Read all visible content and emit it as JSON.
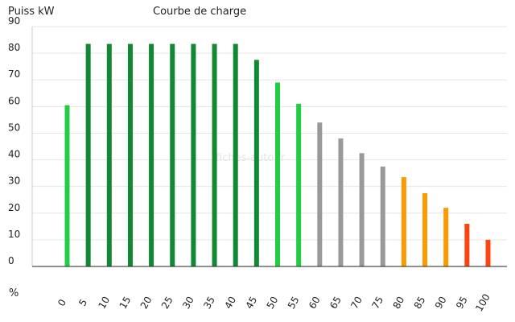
{
  "chart_data": {
    "type": "bar",
    "title": "Courbe de charge",
    "ylabel": "Puiss kW",
    "xlabel": "%",
    "watermark": "fiches-auto.fr",
    "ylim": [
      0,
      90
    ],
    "yticks": [
      0,
      10,
      20,
      30,
      40,
      50,
      60,
      70,
      80,
      90
    ],
    "grid": true,
    "categories": [
      "0",
      "5",
      "10",
      "15",
      "20",
      "25",
      "30",
      "35",
      "40",
      "45",
      "50",
      "55",
      "60",
      "65",
      "70",
      "75",
      "80",
      "85",
      "90",
      "95",
      "100"
    ],
    "values": [
      60.5,
      83.5,
      83.5,
      83.5,
      83.5,
      83.5,
      83.5,
      83.5,
      83.5,
      77.5,
      69,
      61,
      54,
      48,
      42.5,
      37.5,
      33.5,
      27.5,
      22,
      16,
      10
    ],
    "colors": [
      "#22cc44",
      "#118833",
      "#118833",
      "#118833",
      "#118833",
      "#118833",
      "#118833",
      "#118833",
      "#118833",
      "#118833",
      "#22cc44",
      "#22cc44",
      "#999999",
      "#999999",
      "#999999",
      "#999999",
      "#ff9900",
      "#ff9900",
      "#ff9900",
      "#ff4411",
      "#ff4411"
    ]
  }
}
